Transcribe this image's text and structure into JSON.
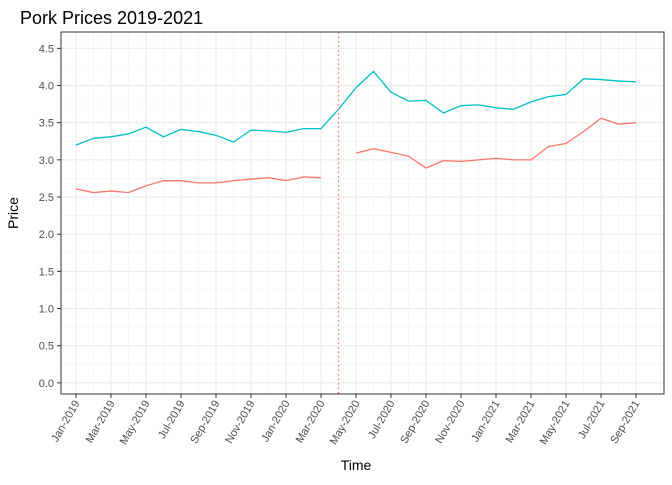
{
  "chart_data": {
    "type": "line",
    "title": "Pork Prices 2019-2021",
    "xlabel": "Time",
    "ylabel": "Price",
    "ylim": [
      -0.15,
      4.72
    ],
    "yticks": [
      "0.0",
      "0.5",
      "1.0",
      "1.5",
      "2.0",
      "2.5",
      "3.0",
      "3.5",
      "4.0",
      "4.5"
    ],
    "x": [
      "Jan-2019",
      "Feb-2019",
      "Mar-2019",
      "Apr-2019",
      "May-2019",
      "Jun-2019",
      "Jul-2019",
      "Aug-2019",
      "Sep-2019",
      "Oct-2019",
      "Nov-2019",
      "Dec-2019",
      "Jan-2020",
      "Feb-2020",
      "Mar-2020",
      "Apr-2020",
      "May-2020",
      "Jun-2020",
      "Jul-2020",
      "Aug-2020",
      "Sep-2020",
      "Oct-2020",
      "Nov-2020",
      "Dec-2020",
      "Jan-2021",
      "Feb-2021",
      "Mar-2021",
      "Apr-2021",
      "May-2021",
      "Jun-2021",
      "Jul-2021",
      "Aug-2021",
      "Sep-2021"
    ],
    "xtick_labels": [
      "Jan-2019",
      "Mar-2019",
      "May-2019",
      "Jul-2019",
      "Sep-2019",
      "Nov-2019",
      "Jan-2020",
      "Mar-2020",
      "May-2020",
      "Jul-2020",
      "Sep-2020",
      "Nov-2020",
      "Jan-2021",
      "Mar-2021",
      "May-2021",
      "Jul-2021",
      "Sep-2021"
    ],
    "series": [
      {
        "color": "#00BFC4",
        "values": [
          3.2,
          3.29,
          3.31,
          3.35,
          3.44,
          3.31,
          3.41,
          3.38,
          3.33,
          3.24,
          3.4,
          3.39,
          3.37,
          3.42,
          3.42,
          3.68,
          3.97,
          4.19,
          3.91,
          3.79,
          3.8,
          3.63,
          3.73,
          3.74,
          3.7,
          3.68,
          3.78,
          3.85,
          3.88,
          4.09,
          4.08,
          4.06,
          4.05
        ]
      },
      {
        "color": "#F8766D",
        "values": [
          2.61,
          2.56,
          2.58,
          2.56,
          2.65,
          2.72,
          2.72,
          2.69,
          2.69,
          2.72,
          2.74,
          2.76,
          2.72,
          2.77,
          2.76,
          null,
          3.09,
          3.15,
          3.1,
          3.05,
          2.89,
          2.99,
          2.98,
          3.0,
          3.02,
          3.0,
          3.0,
          3.18,
          3.22,
          3.38,
          3.56,
          3.48,
          3.5
        ]
      }
    ],
    "vline": {
      "x": "Apr-2020",
      "color": "#F8766D",
      "style": "dotted"
    },
    "grid": true,
    "legend": "none"
  }
}
